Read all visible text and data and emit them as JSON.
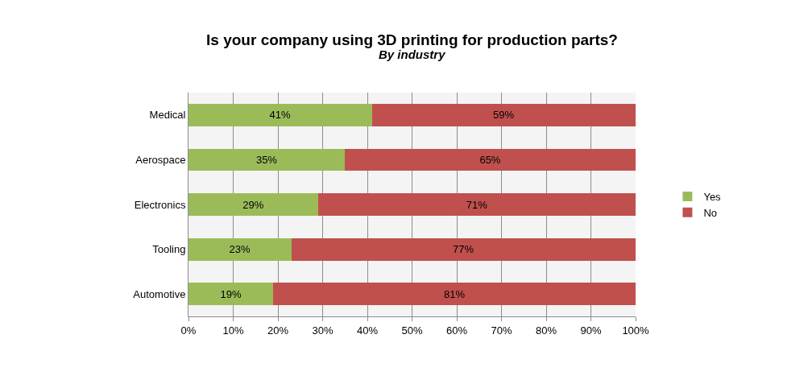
{
  "chart_data": {
    "type": "bar",
    "orientation": "horizontal",
    "stacked": true,
    "title": "Is your company using 3D printing for production parts?",
    "subtitle": "By industry",
    "categories": [
      "Medical",
      "Aerospace",
      "Electronics",
      "Tooling",
      "Automotive"
    ],
    "series": [
      {
        "name": "Yes",
        "color": "#9bbb59",
        "values": [
          41,
          35,
          29,
          23,
          19
        ],
        "value_labels": [
          "41%",
          "35%",
          "29%",
          "23%",
          "19%"
        ]
      },
      {
        "name": "No",
        "color": "#c0504d",
        "values": [
          59,
          65,
          71,
          77,
          81
        ],
        "value_labels": [
          "59%",
          "65%",
          "71%",
          "77%",
          "81%"
        ]
      }
    ],
    "xlim": [
      0,
      100
    ],
    "xticks": [
      {
        "value": 0,
        "label": "0%"
      },
      {
        "value": 10,
        "label": "10%"
      },
      {
        "value": 20,
        "label": "20%"
      },
      {
        "value": 30,
        "label": "30%"
      },
      {
        "value": 40,
        "label": "40%"
      },
      {
        "value": 50,
        "label": "50%"
      },
      {
        "value": 60,
        "label": "60%"
      },
      {
        "value": 70,
        "label": "70%"
      },
      {
        "value": 80,
        "label": "80%"
      },
      {
        "value": 90,
        "label": "90%"
      },
      {
        "value": 100,
        "label": "100%"
      }
    ],
    "grid": "x",
    "legend": "right"
  }
}
